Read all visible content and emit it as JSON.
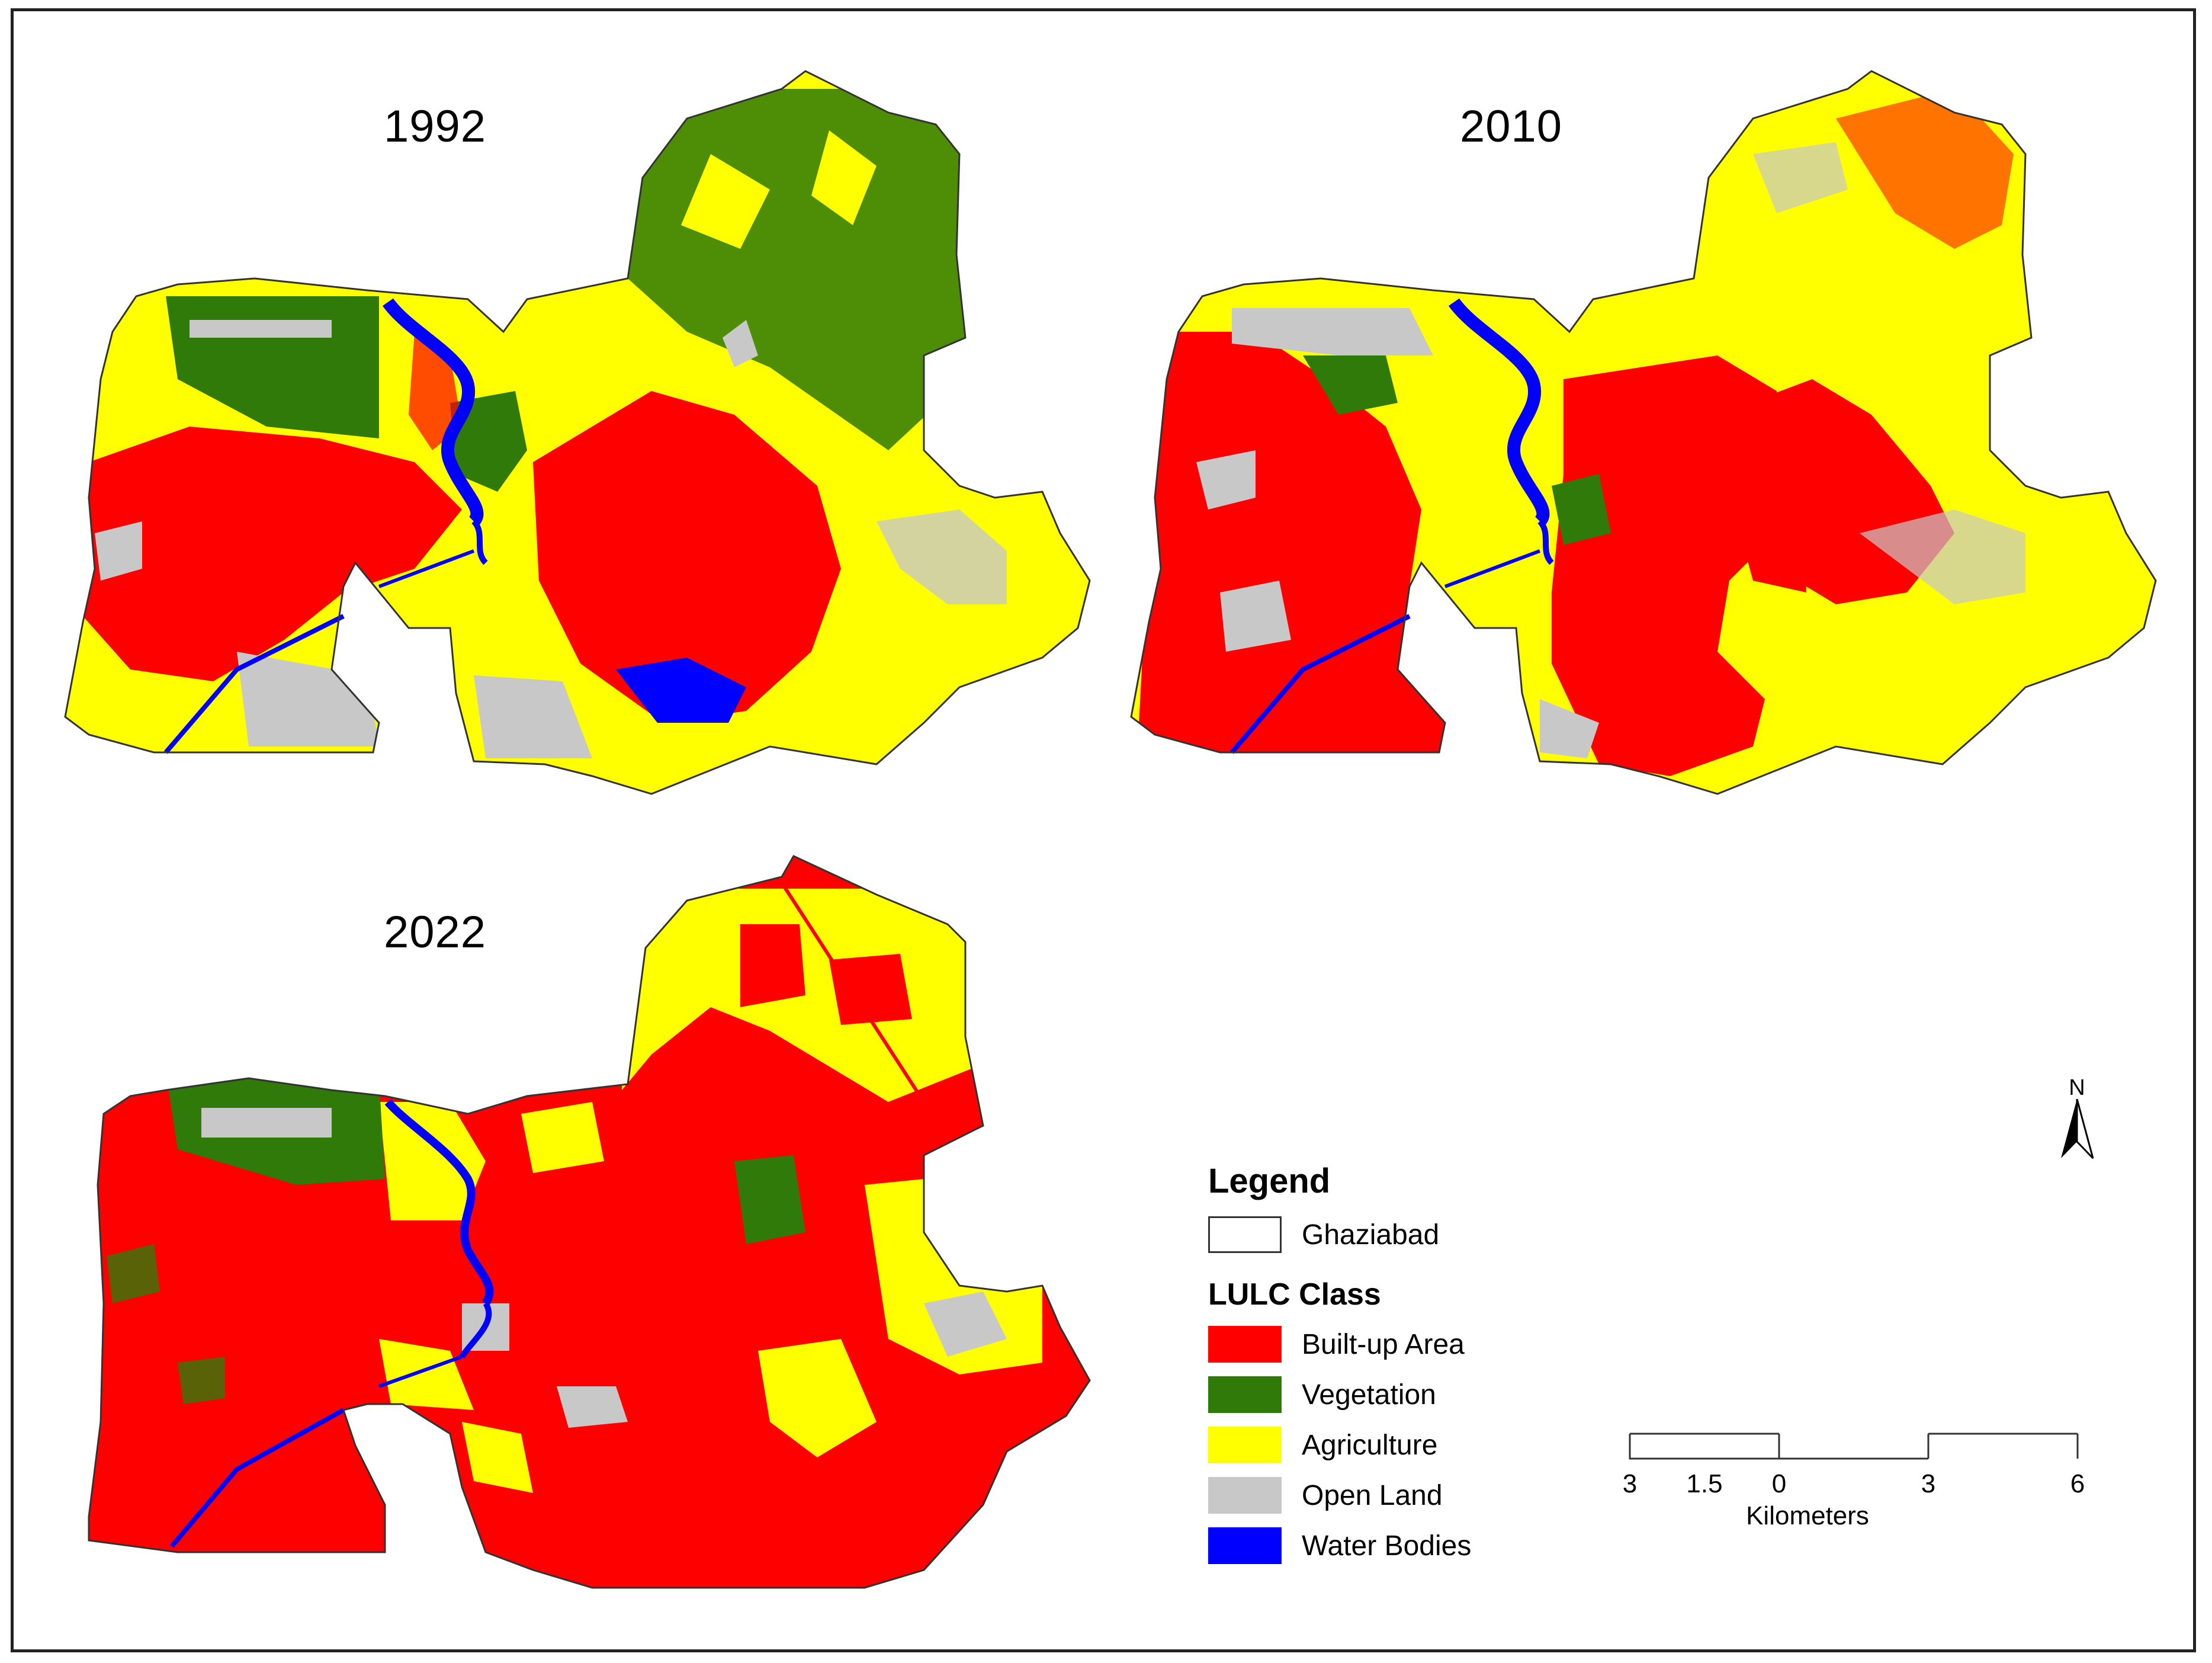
{
  "maps": [
    {
      "year": "1992"
    },
    {
      "year": "2010"
    },
    {
      "year": "2022"
    }
  ],
  "legend": {
    "title": "Legend",
    "boundary_label": "Ghaziabad",
    "class_title": "LULC Class",
    "classes": [
      {
        "label": "Built-up Area",
        "color": "#ff0000"
      },
      {
        "label": "Vegetation",
        "color": "#2f7a08"
      },
      {
        "label": "Agriculture",
        "color": "#ffff00"
      },
      {
        "label": "Open Land",
        "color": "#c8c8c8"
      },
      {
        "label": "Water Bodies",
        "color": "#0000ff"
      }
    ]
  },
  "scale": {
    "ticks": [
      "3",
      "1.5",
      "0",
      "3",
      "6"
    ],
    "units": "Kilometers"
  },
  "north": {
    "label": "N"
  }
}
